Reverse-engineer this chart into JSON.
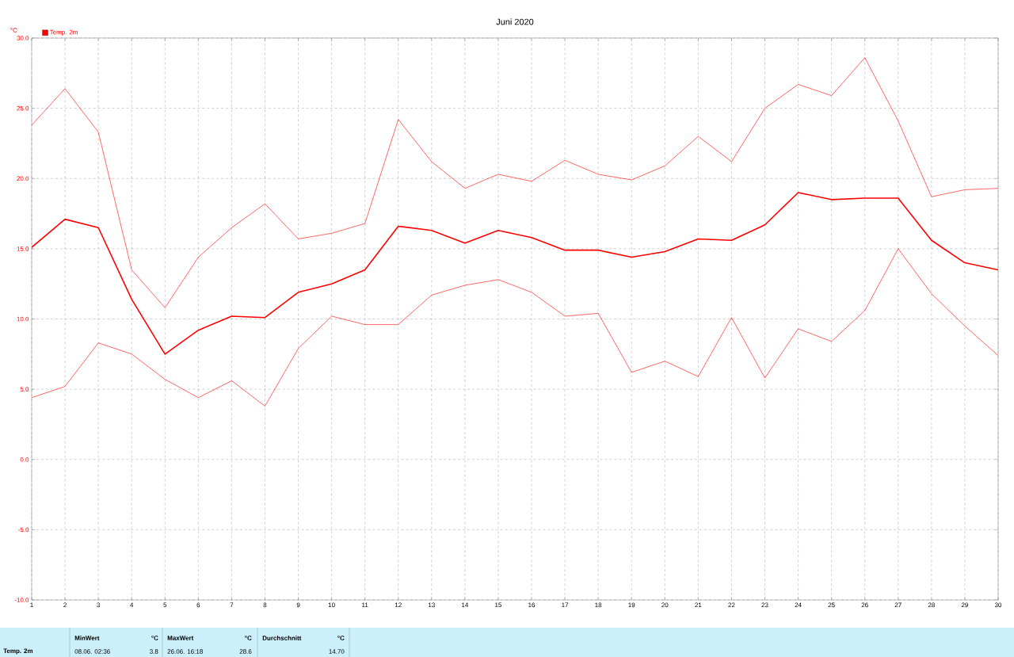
{
  "chart_data": {
    "type": "line",
    "title": "Juni 2020",
    "ylabel": "°C",
    "x": [
      1,
      2,
      3,
      4,
      5,
      6,
      7,
      8,
      9,
      10,
      11,
      12,
      13,
      14,
      15,
      16,
      17,
      18,
      19,
      20,
      21,
      22,
      23,
      24,
      25,
      26,
      27,
      28,
      29,
      30
    ],
    "series": [
      {
        "color": "#ff0000",
        "values": [
          23.8,
          26.4,
          23.3,
          13.5,
          10.8,
          14.4,
          16.5,
          18.2,
          15.7,
          16.1,
          16.8,
          24.2,
          21.2,
          19.3,
          20.3,
          19.8,
          21.3,
          20.3,
          19.9,
          20.9,
          23.0,
          21.2,
          25.0,
          26.7,
          25.9,
          28.6,
          24.1,
          18.7,
          19.2,
          19.3
        ]
      },
      {
        "name": "Temp. 2m",
        "color": "#ff0000",
        "values": [
          15.1,
          17.1,
          16.5,
          11.4,
          7.5,
          9.2,
          10.2,
          10.1,
          11.9,
          12.5,
          13.5,
          16.6,
          16.3,
          15.4,
          16.3,
          15.8,
          14.9,
          14.9,
          14.4,
          14.8,
          15.7,
          15.6,
          16.7,
          19.0,
          18.5,
          18.6,
          18.6,
          15.6,
          14.0,
          13.5
        ]
      },
      {
        "color": "#ff0000",
        "values": [
          4.4,
          5.2,
          8.3,
          7.5,
          5.7,
          4.4,
          5.6,
          3.8,
          7.9,
          10.2,
          9.6,
          9.6,
          11.7,
          12.4,
          12.8,
          11.9,
          10.2,
          10.4,
          6.2,
          7.0,
          5.9,
          10.1,
          5.8,
          9.3,
          8.4,
          10.6,
          15.0,
          11.8,
          9.5,
          7.4
        ]
      }
    ],
    "xlim": [
      1,
      30
    ],
    "xticks": [
      1,
      2,
      3,
      4,
      5,
      6,
      7,
      8,
      9,
      10,
      11,
      12,
      13,
      14,
      15,
      16,
      17,
      18,
      19,
      20,
      21,
      22,
      23,
      24,
      25,
      26,
      27,
      28,
      29,
      30
    ],
    "ylim": [
      -10,
      30
    ],
    "yticks": [
      {
        "value": -10,
        "label": "-10.0"
      },
      {
        "value": -5,
        "label": "-5.0"
      },
      {
        "value": 0,
        "label": "0.0"
      },
      {
        "value": 5,
        "label": "5.0"
      },
      {
        "value": 10,
        "label": "10.0"
      },
      {
        "value": 15,
        "label": "15.0"
      },
      {
        "value": 20,
        "label": "20.0"
      },
      {
        "value": 25,
        "label": "25.0"
      },
      {
        "value": 30,
        "label": "30.0"
      }
    ],
    "grid": true,
    "legend": "top left",
    "line_style": "solid",
    "annotations": [
      "Temp. 2m",
      "MinWert",
      "°C",
      "08.06.  02:36",
      "3.8",
      "MaxWert",
      "°C",
      "26.06.  16:18",
      "28.6",
      "Durchschnitt",
      "°C",
      "14.70"
    ]
  }
}
